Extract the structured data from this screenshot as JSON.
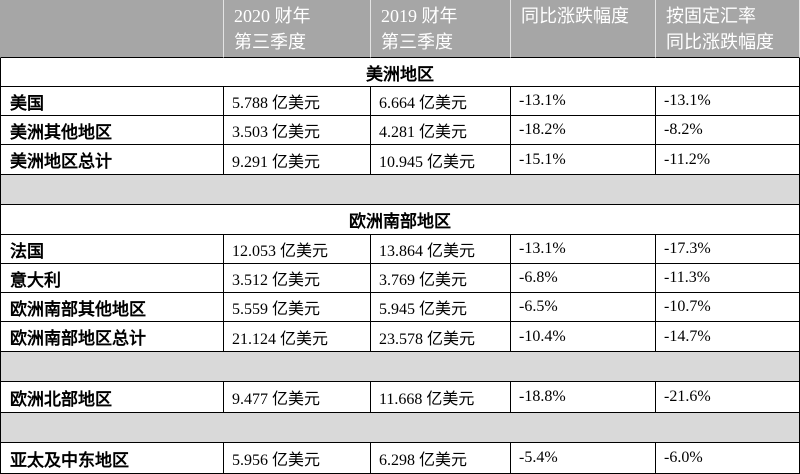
{
  "chart_data": {
    "type": "table",
    "columns": [
      [
        "2020 财年",
        "第三季度"
      ],
      [
        "2019 财年",
        "第三季度"
      ],
      [
        "同比涨跌幅度"
      ],
      [
        "按固定汇率",
        "同比涨跌幅度"
      ]
    ],
    "groups": [
      {
        "title": "美洲地区",
        "rows": [
          {
            "label": "美国",
            "values": [
              "5.788 亿美元",
              "6.664 亿美元",
              "-13.1%",
              "-13.1%"
            ]
          },
          {
            "label": "美洲其他地区",
            "values": [
              "3.503 亿美元",
              "4.281 亿美元",
              "-18.2%",
              "-8.2%"
            ]
          },
          {
            "label": "美洲地区总计",
            "values": [
              "9.291 亿美元",
              "10.945 亿美元",
              "-15.1%",
              "-11.2%"
            ]
          }
        ]
      },
      {
        "title": "欧洲南部地区",
        "rows": [
          {
            "label": "法国",
            "values": [
              "12.053 亿美元",
              "13.864 亿美元",
              "-13.1%",
              "-17.3%"
            ]
          },
          {
            "label": "意大利",
            "values": [
              "3.512 亿美元",
              "3.769 亿美元",
              "-6.8%",
              "-11.3%"
            ]
          },
          {
            "label": "欧洲南部其他地区",
            "values": [
              "5.559 亿美元",
              "5.945 亿美元",
              "-6.5%",
              "-10.7%"
            ]
          },
          {
            "label": "欧洲南部地区总计",
            "values": [
              "21.124 亿美元",
              "23.578 亿美元",
              "-10.4%",
              "-14.7%"
            ]
          }
        ]
      },
      {
        "rows": [
          {
            "label": "欧洲北部地区",
            "values": [
              "9.477 亿美元",
              "11.668 亿美元",
              "-18.8%",
              "-21.6%"
            ]
          }
        ]
      },
      {
        "rows": [
          {
            "label": "亚太及中东地区",
            "values": [
              "5.956 亿美元",
              "6.298 亿美元",
              "-5.4%",
              "-6.0%"
            ]
          }
        ]
      }
    ]
  },
  "colors": {
    "header_bg": "#a6a6a6",
    "header_text": "#ffffff",
    "spacer_bg": "#d9d9d9",
    "grid": "#000000"
  }
}
